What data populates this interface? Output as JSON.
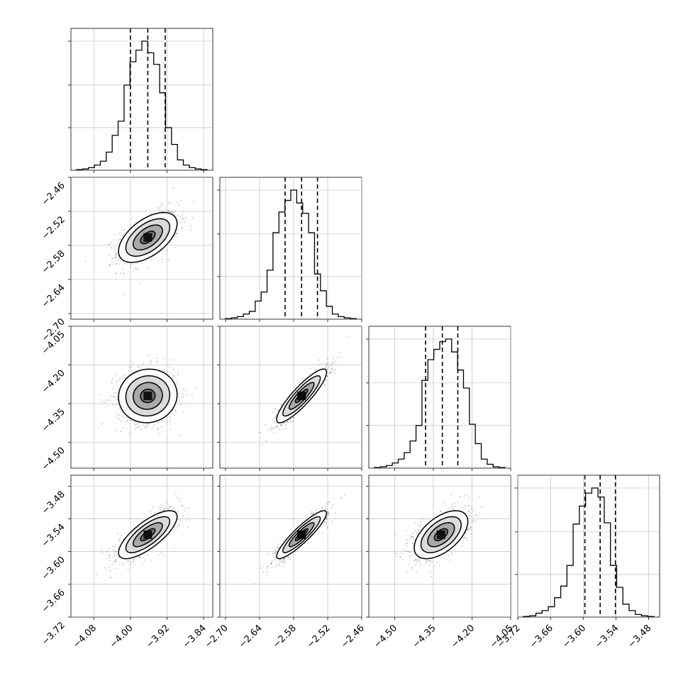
{
  "chart_data": {
    "type": "corner",
    "grid": true,
    "params": [
      {
        "index": 0,
        "range": [
          -4.13,
          -3.82
        ],
        "ticks": [
          "−4.08",
          "−4.00",
          "−3.92",
          "−3.84"
        ],
        "tick_values": [
          -4.08,
          -4.0,
          -3.92,
          -3.84
        ],
        "quantiles": [
          -4.0,
          -3.962,
          -3.924
        ],
        "hist": [
          0.005,
          0.01,
          0.02,
          0.04,
          0.07,
          0.14,
          0.27,
          0.38,
          0.66,
          0.84,
          0.93,
          1.0,
          0.91,
          0.82,
          0.6,
          0.33,
          0.2,
          0.08,
          0.04,
          0.02,
          0.01,
          0.005
        ],
        "hist_ytick_fractions": [
          0.33,
          0.66,
          1.0
        ],
        "row_ticks": []
      },
      {
        "index": 1,
        "range": [
          -2.71,
          -2.46
        ],
        "ticks": [
          "−2.70",
          "−2.64",
          "−2.58",
          "−2.52",
          "−2.46"
        ],
        "tick_values": [
          -2.7,
          -2.64,
          -2.58,
          -2.52,
          -2.46
        ],
        "quantiles": [
          -2.595,
          -2.566,
          -2.538
        ],
        "hist": [
          0.005,
          0.01,
          0.02,
          0.04,
          0.06,
          0.14,
          0.21,
          0.38,
          0.67,
          0.83,
          0.92,
          1.0,
          0.9,
          0.82,
          0.67,
          0.35,
          0.22,
          0.1,
          0.04,
          0.02,
          0.01,
          0.005
        ],
        "hist_ytick_fractions": [
          0.33,
          0.66,
          1.0
        ],
        "row_ticks": [
          "−2.46",
          "−2.52",
          "−2.58",
          "−2.64",
          "−2.70"
        ],
        "row_tick_values": [
          -2.46,
          -2.52,
          -2.58,
          -2.64,
          -2.7
        ]
      },
      {
        "index": 2,
        "range": [
          -4.6,
          -4.05
        ],
        "ticks": [
          "−4.50",
          "−4.35",
          "−4.20",
          "−4.05"
        ],
        "tick_values": [
          -4.5,
          -4.35,
          -4.2,
          -4.05
        ],
        "quantiles": [
          -4.38,
          -4.315,
          -4.255
        ],
        "hist": [
          0.005,
          0.01,
          0.02,
          0.04,
          0.07,
          0.12,
          0.21,
          0.33,
          0.68,
          0.84,
          0.92,
          0.98,
          1.0,
          0.9,
          0.76,
          0.62,
          0.34,
          0.19,
          0.07,
          0.03,
          0.01,
          0.005
        ],
        "hist_ytick_fractions": [
          0.33,
          0.66,
          1.0
        ],
        "row_ticks": [
          "−4.05",
          "−4.20",
          "−4.35",
          "−4.50"
        ],
        "row_tick_values": [
          -4.05,
          -4.2,
          -4.35,
          -4.5
        ]
      },
      {
        "index": 3,
        "range": [
          -3.72,
          -3.46
        ],
        "ticks": [
          "−3.72",
          "−3.66",
          "−3.60",
          "−3.54",
          "−3.48"
        ],
        "tick_values": [
          -3.72,
          -3.66,
          -3.6,
          -3.54,
          -3.48
        ],
        "quantiles": [
          -3.597,
          -3.569,
          -3.541
        ],
        "hist": [
          0.005,
          0.01,
          0.03,
          0.05,
          0.08,
          0.15,
          0.24,
          0.4,
          0.72,
          0.86,
          0.96,
          1.0,
          0.93,
          0.73,
          0.4,
          0.23,
          0.1,
          0.05,
          0.02,
          0.01,
          0.005
        ],
        "hist_ytick_fractions": [
          0.33,
          0.66,
          1.0
        ],
        "row_ticks": [
          "−3.48",
          "−3.54",
          "−3.60",
          "−3.66",
          "−3.72"
        ],
        "row_tick_values": [
          -3.48,
          -3.54,
          -3.6,
          -3.66,
          -3.72
        ]
      }
    ],
    "pairs": [
      {
        "x_param": 0,
        "y_param": 1,
        "center": [
          -3.962,
          -2.566
        ],
        "sigma": [
          0.032,
          0.022
        ],
        "rho": 0.55,
        "levels": [
          0.5,
          1.0,
          1.5,
          2.0
        ]
      },
      {
        "x_param": 0,
        "y_param": 2,
        "center": [
          -3.962,
          -4.32
        ],
        "sigma": [
          0.032,
          0.052
        ],
        "rho": 0.05,
        "levels": [
          0.5,
          1.0,
          1.5,
          2.0
        ]
      },
      {
        "x_param": 1,
        "y_param": 2,
        "center": [
          -2.566,
          -4.32
        ],
        "sigma": [
          0.022,
          0.052
        ],
        "rho": 0.88,
        "levels": [
          0.5,
          1.0,
          1.5,
          2.0
        ]
      },
      {
        "x_param": 0,
        "y_param": 3,
        "center": [
          -3.962,
          -3.569
        ],
        "sigma": [
          0.032,
          0.022
        ],
        "rho": 0.75,
        "levels": [
          0.5,
          1.0,
          1.5,
          2.0
        ]
      },
      {
        "x_param": 1,
        "y_param": 3,
        "center": [
          -2.566,
          -3.569
        ],
        "sigma": [
          0.022,
          0.022
        ],
        "rho": 0.9,
        "levels": [
          0.5,
          1.0,
          1.5,
          2.0
        ]
      },
      {
        "x_param": 2,
        "y_param": 3,
        "center": [
          -4.32,
          -3.569
        ],
        "sigma": [
          0.052,
          0.022
        ],
        "rho": 0.55,
        "levels": [
          0.5,
          1.0,
          1.5,
          2.0
        ]
      }
    ],
    "colors": {
      "line": "#000000",
      "grid": "#b0b0b0",
      "points": "#555555"
    }
  }
}
